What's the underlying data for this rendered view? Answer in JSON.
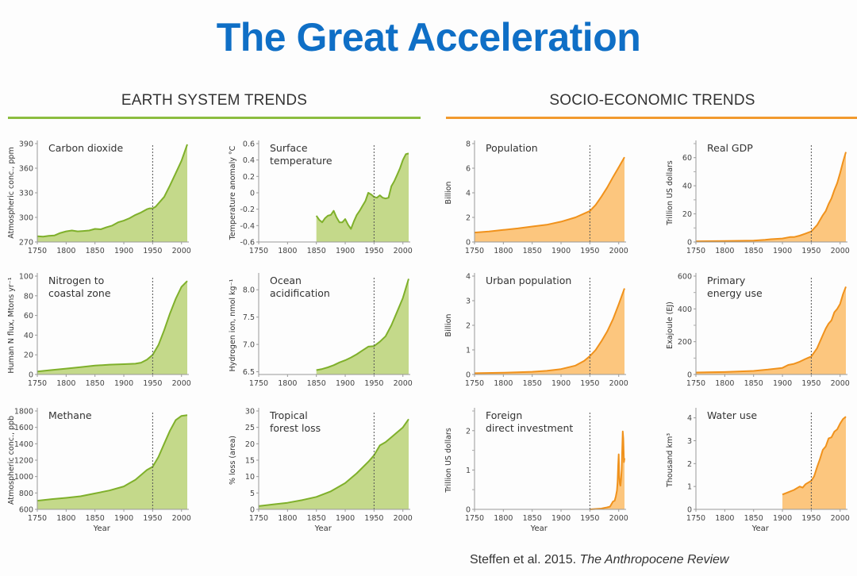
{
  "title": "The Great Acceleration",
  "sections": [
    {
      "label": "EARTH SYSTEM TRENDS",
      "color": "#8cbd3f",
      "fill": "#c4d98a",
      "line": "#7fb02b"
    },
    {
      "label": "SOCIO-ECONOMIC TRENDS",
      "color": "#f29a2e",
      "fill": "#fcc67e",
      "line": "#f0921c"
    }
  ],
  "citation": {
    "authors": "Steffen et al. 2015.",
    "journal": "The Anthropocene Review"
  },
  "chart_data": [
    {
      "type": "area",
      "section": 0,
      "title": [
        "Carbon dioxide"
      ],
      "ylabel": "Atmospheric conc., ppm",
      "xlabel": "",
      "xlim": [
        1750,
        2010
      ],
      "ylim": [
        270,
        390
      ],
      "xticks": [
        1750,
        1800,
        1850,
        1900,
        1950,
        2000
      ],
      "yticks": [
        270,
        300,
        330,
        360,
        390
      ],
      "ytick_labels": [
        "270",
        "300",
        "330",
        "360",
        "390"
      ],
      "marker_year": 1950,
      "x": [
        1750,
        1760,
        1770,
        1780,
        1790,
        1800,
        1810,
        1820,
        1830,
        1840,
        1850,
        1860,
        1870,
        1880,
        1890,
        1900,
        1910,
        1920,
        1930,
        1940,
        1945,
        1950,
        1955,
        1960,
        1970,
        1980,
        1990,
        2000,
        2010
      ],
      "y": [
        277,
        276.5,
        277.5,
        278,
        281,
        283,
        284,
        283,
        283.5,
        284,
        286,
        285.5,
        288,
        290,
        294,
        296,
        299,
        303,
        306,
        310,
        311,
        311,
        313,
        317,
        325,
        339,
        354,
        369,
        389
      ]
    },
    {
      "type": "area",
      "section": 0,
      "title": [
        "Surface",
        "temperature"
      ],
      "ylabel": "Temperature anomaly °C",
      "xlabel": "",
      "xlim": [
        1750,
        2010
      ],
      "ylim": [
        -0.6,
        0.6
      ],
      "xticks": [
        1750,
        1800,
        1850,
        1900,
        1950,
        2000
      ],
      "yticks": [
        -0.6,
        -0.4,
        -0.2,
        0,
        0.2,
        0.4,
        0.6
      ],
      "ytick_labels": [
        "-0.6",
        "-0.4",
        "-0.2",
        "0",
        "0.2",
        "0.4",
        "0.6"
      ],
      "marker_year": 1950,
      "x": [
        1850,
        1855,
        1860,
        1865,
        1870,
        1875,
        1880,
        1885,
        1890,
        1895,
        1900,
        1905,
        1910,
        1915,
        1920,
        1925,
        1930,
        1935,
        1940,
        1945,
        1950,
        1955,
        1960,
        1965,
        1970,
        1975,
        1980,
        1985,
        1990,
        1995,
        2000,
        2005,
        2010
      ],
      "y": [
        -0.28,
        -0.33,
        -0.36,
        -0.31,
        -0.28,
        -0.27,
        -0.22,
        -0.3,
        -0.36,
        -0.36,
        -0.32,
        -0.39,
        -0.44,
        -0.35,
        -0.27,
        -0.22,
        -0.16,
        -0.1,
        0.0,
        -0.02,
        -0.05,
        -0.06,
        -0.03,
        -0.06,
        -0.07,
        -0.06,
        0.08,
        0.14,
        0.22,
        0.3,
        0.4,
        0.47,
        0.48
      ]
    },
    {
      "type": "area",
      "section": 1,
      "title": [
        "Population"
      ],
      "ylabel": "Billion",
      "xlabel": "",
      "xlim": [
        1750,
        2010
      ],
      "ylim": [
        0,
        8
      ],
      "xticks": [
        1750,
        1800,
        1850,
        1900,
        1950,
        2000
      ],
      "yticks": [
        0,
        2,
        4,
        6,
        8
      ],
      "ytick_labels": [
        "0",
        "2",
        "4",
        "6",
        "8"
      ],
      "marker_year": 1950,
      "x": [
        1750,
        1775,
        1800,
        1825,
        1850,
        1875,
        1900,
        1925,
        1950,
        1960,
        1970,
        1980,
        1990,
        2000,
        2010
      ],
      "y": [
        0.77,
        0.85,
        0.98,
        1.1,
        1.26,
        1.4,
        1.65,
        2.0,
        2.52,
        3.02,
        3.69,
        4.43,
        5.28,
        6.07,
        6.9
      ]
    },
    {
      "type": "area",
      "section": 1,
      "title": [
        "Real GDP"
      ],
      "ylabel": "Trillion US dollars",
      "xlabel": "",
      "xlim": [
        1750,
        2010
      ],
      "ylim": [
        0,
        70
      ],
      "xticks": [
        1750,
        1800,
        1850,
        1900,
        1950,
        2000
      ],
      "yticks": [
        0,
        20,
        40,
        60
      ],
      "ytick_labels": [
        "0",
        "20",
        "40",
        "60"
      ],
      "minor_yticks": [
        10,
        30,
        50,
        70
      ],
      "marker_year": 1950,
      "x": [
        1750,
        1800,
        1850,
        1870,
        1880,
        1900,
        1913,
        1920,
        1930,
        1940,
        1950,
        1960,
        1970,
        1975,
        1980,
        1985,
        1990,
        1995,
        2000,
        2005,
        2010
      ],
      "y": [
        0.5,
        0.7,
        1.0,
        1.5,
        2.0,
        2.5,
        3.5,
        3.5,
        4.5,
        6.0,
        7.5,
        12,
        19,
        22,
        27,
        31,
        37,
        42,
        49,
        57,
        64
      ]
    },
    {
      "type": "area",
      "section": 0,
      "title": [
        "Nitrogen to",
        "coastal zone"
      ],
      "ylabel": "Human N flux, Mtons yr⁻¹",
      "xlabel": "",
      "xlim": [
        1750,
        2010
      ],
      "ylim": [
        0,
        100
      ],
      "xticks": [
        1750,
        1800,
        1850,
        1900,
        1950,
        2000
      ],
      "yticks": [
        0,
        20,
        40,
        60,
        80,
        100
      ],
      "ytick_labels": [
        "0",
        "20",
        "40",
        "60",
        "80",
        "100"
      ],
      "marker_year": 1950,
      "x": [
        1750,
        1775,
        1800,
        1825,
        1850,
        1875,
        1900,
        1920,
        1930,
        1940,
        1950,
        1960,
        1970,
        1980,
        1990,
        2000,
        2010
      ],
      "y": [
        3,
        4.5,
        6,
        7.5,
        9,
        10,
        10.5,
        11,
        12,
        15,
        20,
        30,
        45,
        62,
        77,
        89,
        95
      ]
    },
    {
      "type": "area",
      "section": 0,
      "title": [
        "Ocean",
        "acidification"
      ],
      "ylabel": "Hydrogen ion, nmol kg⁻¹",
      "xlabel": "",
      "xlim": [
        1750,
        2010
      ],
      "ylim": [
        6.45,
        8.25
      ],
      "xticks": [
        1750,
        1800,
        1850,
        1900,
        1950,
        2000
      ],
      "yticks": [
        6.5,
        7.0,
        7.5,
        8.0
      ],
      "ytick_labels": [
        "6.5",
        "7.0",
        "7.5",
        "8.0"
      ],
      "marker_year": 1950,
      "x": [
        1850,
        1860,
        1870,
        1880,
        1890,
        1900,
        1910,
        1920,
        1930,
        1940,
        1950,
        1960,
        1970,
        1980,
        1990,
        2000,
        2010
      ],
      "y": [
        6.53,
        6.55,
        6.58,
        6.62,
        6.67,
        6.71,
        6.76,
        6.82,
        6.89,
        6.96,
        6.97,
        7.05,
        7.15,
        7.35,
        7.6,
        7.85,
        8.2
      ]
    },
    {
      "type": "area",
      "section": 1,
      "title": [
        "Urban population"
      ],
      "ylabel": "Billion",
      "xlabel": "",
      "xlim": [
        1750,
        2010
      ],
      "ylim": [
        0,
        4
      ],
      "xticks": [
        1750,
        1800,
        1850,
        1900,
        1950,
        2000
      ],
      "yticks": [
        0,
        1,
        2,
        3,
        4
      ],
      "ytick_labels": [
        "0",
        "1",
        "2",
        "3",
        "4"
      ],
      "marker_year": 1950,
      "x": [
        1750,
        1800,
        1850,
        1875,
        1900,
        1925,
        1940,
        1950,
        1960,
        1970,
        1980,
        1990,
        2000,
        2010
      ],
      "y": [
        0.05,
        0.07,
        0.11,
        0.15,
        0.22,
        0.36,
        0.55,
        0.75,
        1.0,
        1.35,
        1.75,
        2.25,
        2.85,
        3.5
      ]
    },
    {
      "type": "area",
      "section": 1,
      "title": [
        "Primary",
        "energy use"
      ],
      "ylabel": "Exajoule (EJ)",
      "xlabel": "",
      "xlim": [
        1750,
        2010
      ],
      "ylim": [
        0,
        600
      ],
      "xticks": [
        1750,
        1800,
        1850,
        1900,
        1950,
        2000
      ],
      "yticks": [
        0,
        200,
        400,
        600
      ],
      "ytick_labels": [
        "0",
        "200",
        "400",
        "600"
      ],
      "minor_yticks": [
        100,
        300,
        500
      ],
      "marker_year": 1950,
      "x": [
        1750,
        1800,
        1850,
        1875,
        1900,
        1910,
        1920,
        1930,
        1940,
        1950,
        1960,
        1970,
        1975,
        1980,
        1985,
        1990,
        1995,
        2000,
        2005,
        2010
      ],
      "y": [
        12,
        15,
        22,
        30,
        40,
        58,
        65,
        78,
        95,
        110,
        160,
        240,
        280,
        310,
        330,
        380,
        400,
        430,
        490,
        535
      ]
    },
    {
      "type": "area",
      "section": 0,
      "title": [
        "Methane"
      ],
      "ylabel": "Atmospheric conc., ppb",
      "xlabel": "Year",
      "xlim": [
        1750,
        2010
      ],
      "ylim": [
        600,
        1800
      ],
      "xticks": [
        1750,
        1800,
        1850,
        1900,
        1950,
        2000
      ],
      "yticks": [
        600,
        800,
        1000,
        1200,
        1400,
        1600,
        1800
      ],
      "ytick_labels": [
        "600",
        "800",
        "1000",
        "1200",
        "1400",
        "1600",
        "1800"
      ],
      "marker_year": 1950,
      "x": [
        1750,
        1775,
        1800,
        1825,
        1850,
        1875,
        1900,
        1910,
        1920,
        1930,
        1940,
        1950,
        1960,
        1970,
        1980,
        1990,
        2000,
        2010
      ],
      "y": [
        705,
        725,
        740,
        760,
        795,
        830,
        880,
        920,
        960,
        1020,
        1080,
        1120,
        1240,
        1400,
        1560,
        1690,
        1740,
        1750
      ]
    },
    {
      "type": "area",
      "section": 0,
      "title": [
        "Tropical",
        "forest loss"
      ],
      "ylabel": "% loss (area)",
      "xlabel": "Year",
      "xlim": [
        1750,
        2010
      ],
      "ylim": [
        0,
        30
      ],
      "xticks": [
        1750,
        1800,
        1850,
        1900,
        1950,
        2000
      ],
      "yticks": [
        0,
        5,
        10,
        15,
        20,
        25,
        30
      ],
      "ytick_labels": [
        "0",
        "5",
        "10",
        "15",
        "20",
        "25",
        "30"
      ],
      "marker_year": 1950,
      "x": [
        1750,
        1775,
        1800,
        1825,
        1850,
        1875,
        1900,
        1920,
        1940,
        1950,
        1960,
        1970,
        1980,
        1990,
        2000,
        2010
      ],
      "y": [
        1,
        1.5,
        2,
        2.8,
        3.8,
        5.5,
        8,
        11,
        14.5,
        16.5,
        19.5,
        20.5,
        22,
        23.5,
        25,
        27.5
      ]
    },
    {
      "type": "area",
      "section": 1,
      "title": [
        "Foreign",
        "direct investment"
      ],
      "ylabel": "Trillion US dollars",
      "xlabel": "Year",
      "xlim": [
        1750,
        2010
      ],
      "ylim": [
        0,
        2.5
      ],
      "xticks": [
        1750,
        1800,
        1850,
        1900,
        1950,
        2000
      ],
      "yticks": [
        0,
        1,
        2
      ],
      "ytick_labels": [
        "0",
        "1",
        "2"
      ],
      "minor_yticks": [
        0.5,
        1.5,
        2.5
      ],
      "marker_year": 1950,
      "x": [
        1950,
        1960,
        1970,
        1980,
        1985,
        1990,
        1993,
        1995,
        1997,
        1998,
        1999,
        2000,
        2001,
        2002,
        2003,
        2004,
        2005,
        2006,
        2007,
        2008,
        2009,
        2010
      ],
      "y": [
        0.0,
        0.01,
        0.02,
        0.05,
        0.07,
        0.2,
        0.22,
        0.33,
        0.48,
        0.7,
        1.1,
        1.4,
        0.8,
        0.65,
        0.6,
        0.75,
        1.0,
        1.5,
        1.98,
        1.8,
        1.2,
        1.3
      ]
    },
    {
      "type": "area",
      "section": 1,
      "title": [
        "Water use"
      ],
      "ylabel": "Thousand km³",
      "xlabel": "Year",
      "xlim": [
        1750,
        2010
      ],
      "ylim": [
        0,
        4.3
      ],
      "xticks": [
        1750,
        1800,
        1850,
        1900,
        1950,
        2000
      ],
      "yticks": [
        0,
        1,
        2,
        3,
        4
      ],
      "ytick_labels": [
        "0",
        "1",
        "2",
        "3",
        "4"
      ],
      "marker_year": 1950,
      "x": [
        1900,
        1910,
        1920,
        1930,
        1935,
        1940,
        1950,
        1955,
        1960,
        1965,
        1970,
        1975,
        1980,
        1985,
        1990,
        1995,
        2000,
        2005,
        2010
      ],
      "y": [
        0.65,
        0.75,
        0.85,
        1.0,
        0.95,
        1.1,
        1.25,
        1.45,
        1.85,
        2.2,
        2.6,
        2.75,
        3.1,
        3.15,
        3.4,
        3.5,
        3.75,
        3.95,
        4.05
      ]
    }
  ]
}
